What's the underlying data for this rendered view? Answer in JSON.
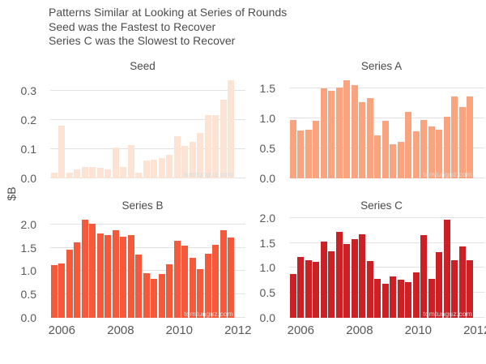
{
  "title": {
    "line1": "Patterns Similar at Looking at Series of Rounds",
    "line2": "Seed was the Fastest to Recover",
    "line3": "Series C was the Slowest to Recover"
  },
  "watermark": "tomtunguz.com",
  "chart_data": {
    "type": "bar",
    "faceted": true,
    "title": "Patterns Similar at Looking at Series of Rounds",
    "xlabel": "",
    "ylabel": "$B",
    "grid": "horizontal-only",
    "x_tick_labels": [
      "2006",
      "2008",
      "2010",
      "2012"
    ],
    "categories": [
      "2006 Q1",
      "2006 Q2",
      "2006 Q3",
      "2006 Q4",
      "2007 Q1",
      "2007 Q2",
      "2007 Q3",
      "2007 Q4",
      "2008 Q1",
      "2008 Q2",
      "2008 Q3",
      "2008 Q4",
      "2009 Q1",
      "2009 Q2",
      "2009 Q3",
      "2009 Q4",
      "2010 Q1",
      "2010 Q2",
      "2010 Q3",
      "2010 Q4",
      "2011 Q1",
      "2011 Q2",
      "2011 Q3",
      "2011 Q4"
    ],
    "series": [
      {
        "name": "Seed",
        "color": "#FCE3D3",
        "ylim": [
          0,
          0.352
        ],
        "yticks": [
          0.0,
          0.1,
          0.2,
          0.3
        ],
        "values": [
          0.02,
          0.18,
          0.02,
          0.03,
          0.04,
          0.04,
          0.035,
          0.03,
          0.105,
          0.04,
          0.115,
          0.02,
          0.06,
          0.065,
          0.07,
          0.08,
          0.145,
          0.11,
          0.125,
          0.155,
          0.215,
          0.215,
          0.27,
          0.335
        ]
      },
      {
        "name": "Series A",
        "color": "#F9A47E",
        "ylim": [
          0,
          1.71
        ],
        "yticks": [
          0.0,
          0.5,
          1.0,
          1.5
        ],
        "values": [
          0.97,
          0.8,
          0.81,
          0.96,
          1.5,
          1.46,
          1.51,
          1.63,
          1.55,
          1.26,
          1.33,
          0.72,
          0.95,
          0.56,
          0.61,
          1.11,
          0.78,
          0.97,
          0.86,
          0.81,
          1.02,
          1.36,
          1.19,
          1.36
        ]
      },
      {
        "name": "Series B",
        "color": "#F4593B",
        "ylim": [
          0,
          2.205
        ],
        "yticks": [
          0.0,
          0.5,
          1.0,
          1.5,
          2.0
        ],
        "values": [
          1.13,
          1.16,
          1.46,
          1.62,
          2.1,
          2.01,
          1.8,
          1.77,
          1.88,
          1.74,
          1.77,
          1.36,
          0.96,
          0.83,
          0.94,
          1.15,
          1.65,
          1.54,
          1.29,
          1.04,
          1.37,
          1.57,
          1.88,
          1.72
        ]
      },
      {
        "name": "Series C",
        "color": "#CB2026",
        "ylim": [
          0,
          2.06
        ],
        "yticks": [
          0.0,
          0.5,
          1.0,
          1.5,
          2.0
        ],
        "values": [
          0.88,
          1.22,
          1.16,
          1.12,
          1.52,
          1.33,
          1.72,
          1.48,
          1.58,
          1.67,
          1.13,
          0.78,
          0.68,
          0.83,
          0.76,
          0.71,
          0.91,
          1.65,
          0.78,
          1.32,
          1.96,
          1.15,
          1.42,
          1.15
        ]
      }
    ]
  }
}
